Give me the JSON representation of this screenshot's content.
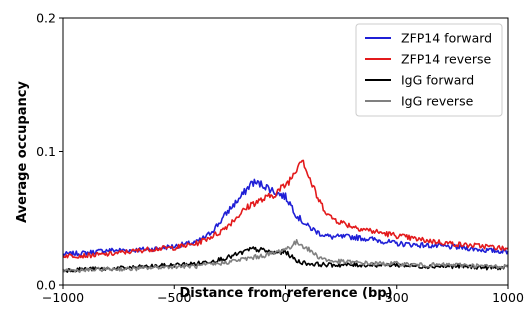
{
  "chart_data": {
    "type": "line",
    "xlabel": "Distance from reference (bp)",
    "ylabel": "Average occupancy",
    "xlim": [
      -1000,
      1000
    ],
    "ylim": [
      0,
      0.2
    ],
    "xticks": [
      -1000,
      -500,
      0,
      500,
      1000
    ],
    "xtick_labels": [
      "−1000",
      "−500",
      "0",
      "500",
      "1000"
    ],
    "yticks": [
      0.0,
      0.1,
      0.2
    ],
    "ytick_labels": [
      "0.0",
      "0.1",
      "0.2"
    ],
    "grid": false,
    "legend_position": "top-right",
    "series": [
      {
        "name": "ZFP14 forward",
        "color": "#1f1fd6",
        "x": [
          -1000,
          -900,
          -800,
          -700,
          -600,
          -500,
          -400,
          -350,
          -300,
          -250,
          -200,
          -150,
          -100,
          -50,
          0,
          25,
          50,
          100,
          150,
          200,
          300,
          400,
          500,
          600,
          700,
          800,
          900,
          1000
        ],
        "y": [
          0.023,
          0.024,
          0.026,
          0.026,
          0.027,
          0.029,
          0.032,
          0.037,
          0.046,
          0.057,
          0.066,
          0.077,
          0.075,
          0.07,
          0.066,
          0.06,
          0.052,
          0.044,
          0.039,
          0.036,
          0.036,
          0.034,
          0.031,
          0.03,
          0.029,
          0.028,
          0.026,
          0.025
        ]
      },
      {
        "name": "ZFP14 reverse",
        "color": "#e31a1c",
        "x": [
          -1000,
          -900,
          -800,
          -700,
          -600,
          -500,
          -400,
          -300,
          -250,
          -200,
          -150,
          -100,
          -50,
          0,
          25,
          50,
          75,
          100,
          150,
          200,
          250,
          300,
          400,
          500,
          600,
          700,
          800,
          900,
          1000
        ],
        "y": [
          0.022,
          0.022,
          0.023,
          0.025,
          0.027,
          0.028,
          0.031,
          0.039,
          0.046,
          0.054,
          0.061,
          0.064,
          0.068,
          0.075,
          0.08,
          0.088,
          0.096,
          0.083,
          0.063,
          0.051,
          0.047,
          0.044,
          0.04,
          0.037,
          0.034,
          0.032,
          0.03,
          0.029,
          0.027
        ]
      },
      {
        "name": "IgG forward",
        "color": "#000000",
        "x": [
          -1000,
          -900,
          -800,
          -700,
          -600,
          -500,
          -400,
          -300,
          -250,
          -200,
          -150,
          -100,
          -50,
          0,
          50,
          100,
          200,
          300,
          400,
          500,
          600,
          700,
          800,
          900,
          1000
        ],
        "y": [
          0.011,
          0.012,
          0.012,
          0.013,
          0.014,
          0.015,
          0.016,
          0.019,
          0.021,
          0.024,
          0.027,
          0.026,
          0.024,
          0.025,
          0.018,
          0.016,
          0.015,
          0.015,
          0.015,
          0.015,
          0.014,
          0.014,
          0.014,
          0.013,
          0.013
        ]
      },
      {
        "name": "IgG reverse",
        "color": "#808080",
        "x": [
          -1000,
          -900,
          -800,
          -700,
          -600,
          -500,
          -400,
          -300,
          -200,
          -100,
          -50,
          0,
          25,
          50,
          75,
          100,
          150,
          200,
          300,
          400,
          500,
          600,
          700,
          800,
          900,
          1000
        ],
        "y": [
          0.011,
          0.011,
          0.012,
          0.012,
          0.013,
          0.014,
          0.014,
          0.016,
          0.019,
          0.022,
          0.024,
          0.027,
          0.029,
          0.032,
          0.03,
          0.027,
          0.021,
          0.018,
          0.017,
          0.016,
          0.016,
          0.015,
          0.015,
          0.015,
          0.014,
          0.014
        ]
      }
    ]
  }
}
